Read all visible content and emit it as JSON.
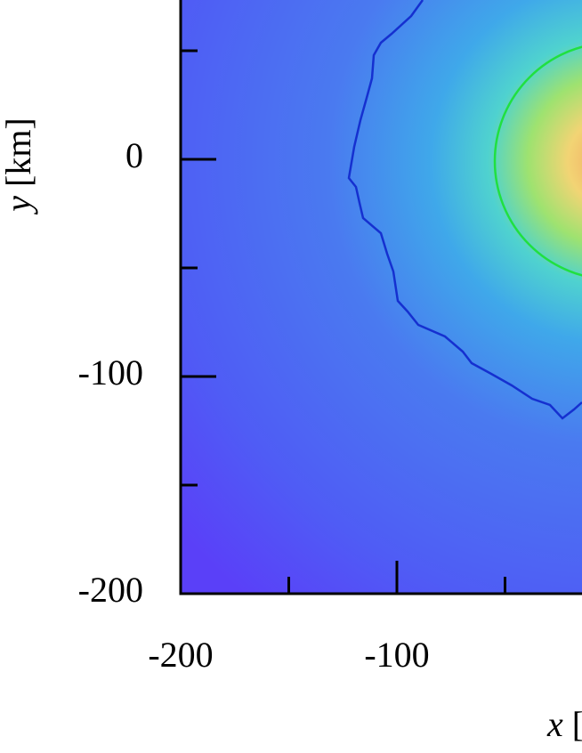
{
  "chart_data": {
    "type": "heatmap",
    "xlabel": "x [km]",
    "ylabel": "y [km]",
    "xlim": [
      -200,
      200
    ],
    "ylim": [
      -200,
      200
    ],
    "xticks": [
      -200,
      -100
    ],
    "yticks": [
      -200,
      -100,
      0
    ],
    "xminor": [
      -150,
      -50
    ],
    "yminor": [
      -150,
      -50,
      50
    ]
  }
}
